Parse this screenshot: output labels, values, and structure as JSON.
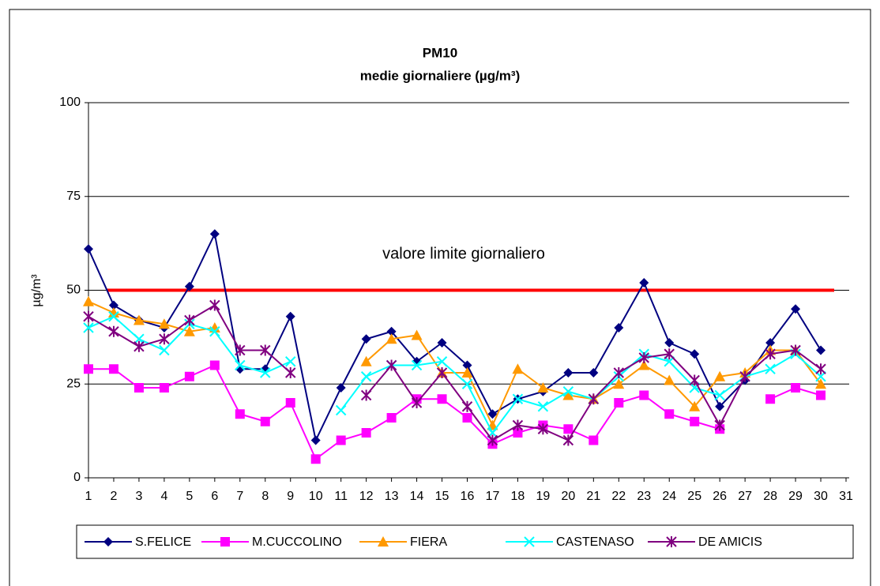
{
  "chart_data": {
    "type": "line",
    "title": "PM10",
    "subtitle": "medie giornaliere (µg/m³)",
    "y_label": "µg/m³",
    "x": [
      1,
      2,
      3,
      4,
      5,
      6,
      7,
      8,
      9,
      10,
      11,
      12,
      13,
      14,
      15,
      16,
      17,
      18,
      19,
      20,
      21,
      22,
      23,
      24,
      25,
      26,
      27,
      28,
      29,
      30,
      31
    ],
    "xlim": [
      1,
      31
    ],
    "xticks": [
      1,
      2,
      3,
      4,
      5,
      6,
      7,
      8,
      9,
      10,
      11,
      12,
      13,
      14,
      15,
      16,
      17,
      18,
      19,
      20,
      21,
      22,
      23,
      24,
      25,
      26,
      27,
      28,
      29,
      30,
      31
    ],
    "ylim": [
      0,
      100
    ],
    "yticks": [
      0,
      25,
      50,
      75,
      100
    ],
    "grid": true,
    "reference_line": {
      "label": "valore limite giornaliero",
      "value": 50,
      "color": "#ff0000"
    },
    "legend": "bottom",
    "series": [
      {
        "name": "S.FELICE",
        "color": "#000080",
        "marker": "diamond",
        "values": [
          61,
          46,
          42,
          40,
          51,
          65,
          29,
          29,
          43,
          10,
          24,
          37,
          39,
          31,
          36,
          30,
          17,
          21,
          23,
          28,
          28,
          40,
          52,
          36,
          33,
          19,
          26,
          36,
          45,
          34,
          null
        ]
      },
      {
        "name": "M.CUCCOLINO",
        "color": "#ff00ff",
        "marker": "square",
        "values": [
          29,
          29,
          24,
          24,
          27,
          30,
          17,
          15,
          20,
          5,
          10,
          12,
          16,
          21,
          21,
          16,
          9,
          12,
          14,
          13,
          10,
          20,
          22,
          17,
          15,
          13,
          null,
          21,
          24,
          22,
          null
        ]
      },
      {
        "name": "FIERA",
        "color": "#ff9900",
        "marker": "triangle",
        "values": [
          47,
          44,
          42,
          41,
          39,
          40,
          null,
          null,
          null,
          null,
          null,
          31,
          37,
          38,
          28,
          28,
          14,
          29,
          24,
          22,
          21,
          25,
          30,
          26,
          19,
          27,
          28,
          34,
          34,
          25,
          null
        ]
      },
      {
        "name": "CASTENASO",
        "color": "#00ffff",
        "marker": "x",
        "values": [
          40,
          43,
          37,
          34,
          41,
          39,
          30,
          28,
          31,
          null,
          18,
          27,
          30,
          30,
          31,
          25,
          12,
          21,
          19,
          23,
          21,
          27,
          33,
          31,
          24,
          22,
          27,
          29,
          33,
          27,
          null
        ]
      },
      {
        "name": "DE AMICIS",
        "color": "#800080",
        "marker": "star",
        "values": [
          43,
          39,
          35,
          37,
          42,
          46,
          34,
          34,
          28,
          null,
          null,
          22,
          30,
          20,
          28,
          19,
          10,
          14,
          13,
          10,
          21,
          28,
          32,
          33,
          26,
          14,
          27,
          33,
          34,
          29,
          null
        ]
      }
    ]
  }
}
